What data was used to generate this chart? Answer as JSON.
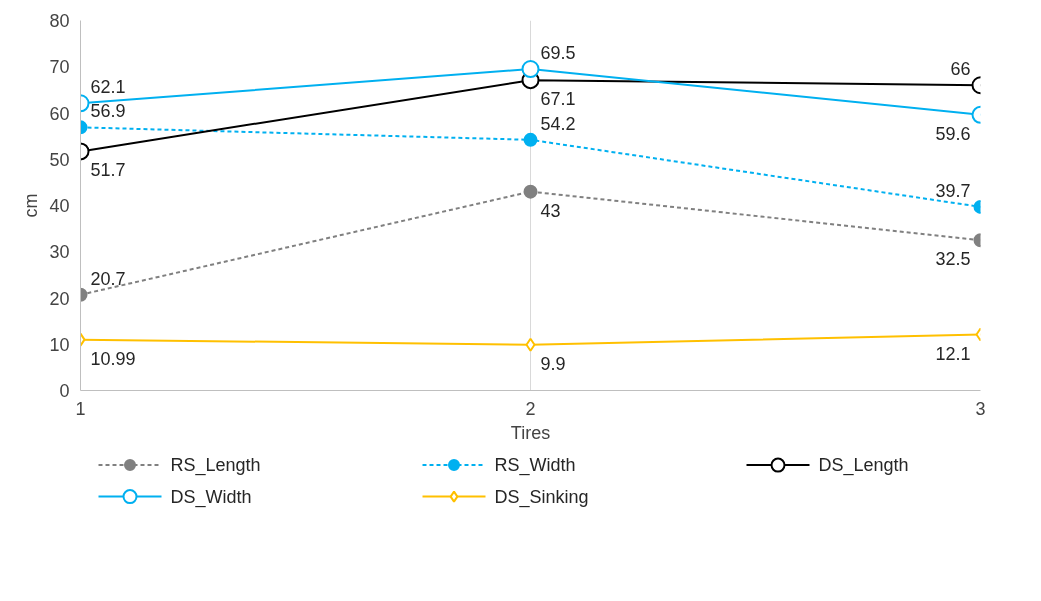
{
  "chart_data": {
    "type": "line",
    "xlabel": "Tires",
    "ylabel": "cm",
    "x": [
      1,
      2,
      3
    ],
    "xlim": [
      1,
      3
    ],
    "xticks": [
      1,
      2,
      3
    ],
    "ylim": [
      0,
      80
    ],
    "yticks": [
      0,
      10,
      20,
      30,
      40,
      50,
      60,
      70,
      80
    ],
    "grid": "x",
    "legend": "bottom",
    "data_labels": true,
    "series": [
      {
        "name": "RS_Length",
        "color": "#808080",
        "values": [
          20.7,
          43,
          32.5
        ],
        "line_style": "dashed",
        "marker": "circle"
      },
      {
        "name": "RS_Width",
        "color": "#00b0f0",
        "values": [
          56.9,
          54.2,
          39.7
        ],
        "line_style": "dashed",
        "marker": "circle"
      },
      {
        "name": "DS_Length",
        "color": "#000000",
        "values": [
          51.7,
          67.1,
          66
        ],
        "line_style": "solid",
        "marker": "circle"
      },
      {
        "name": "DS_Width",
        "color": "#00b0f0",
        "values": [
          62.1,
          69.5,
          59.6
        ],
        "line_style": "solid",
        "marker": "circle"
      },
      {
        "name": "DS_Sinking",
        "color": "#ffc000",
        "values": [
          10.99,
          9.9,
          12.1
        ],
        "line_style": "solid",
        "marker": "diamond"
      }
    ]
  }
}
